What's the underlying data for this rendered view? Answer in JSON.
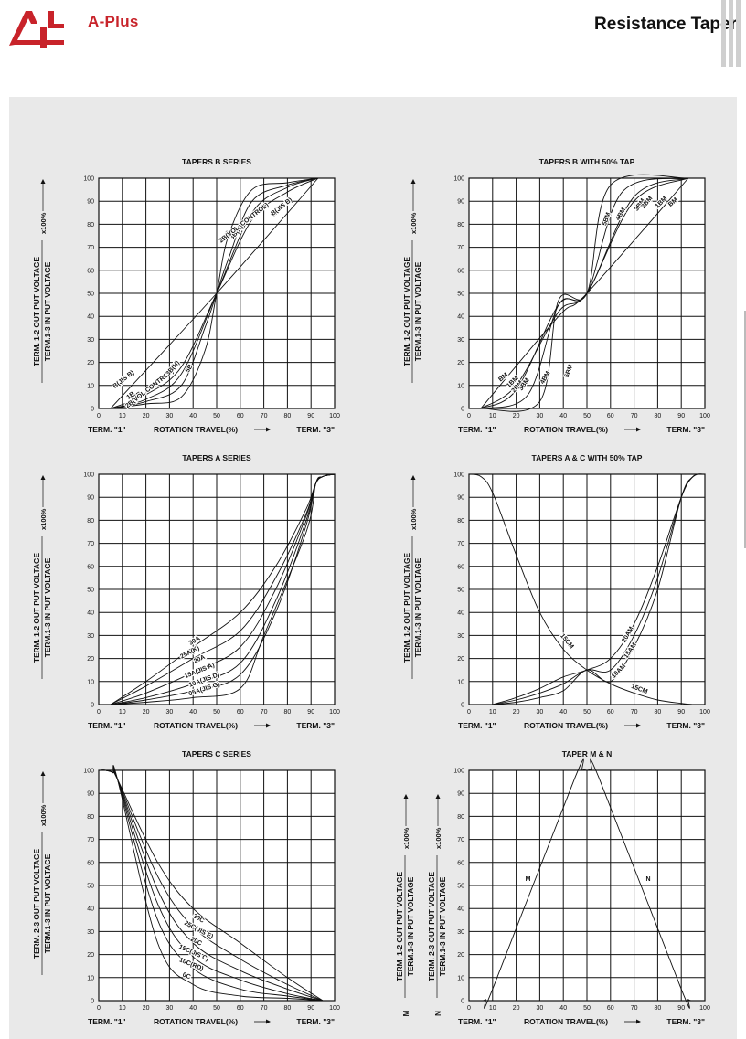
{
  "header": {
    "brand": "A-Plus",
    "title": "Resistance Taper",
    "accent_color": "#c8232a"
  },
  "axis_text": {
    "term1": "TERM. \"1\"",
    "term3": "TERM. \"3\"",
    "rotation": "ROTATION TRAVEL(%)",
    "x100": "x100%",
    "ylabel_12_num": "TERM. 1-2 OUT PUT VOLTAGE",
    "ylabel_13_den": "TERM.1-3 IN PUT VOLTAGE",
    "ylabel_23_num": "TERM. 2-3 OUT PUT VOLTAGE",
    "ylabel_m_num": "TERM. 1-2 OUT PUT VOLTAGE",
    "ylabel_n_num": "TERM. 2-3 OUT PUT VOLTAGE",
    "m_marker": "M",
    "n_marker": "N"
  },
  "chart_data": [
    {
      "type": "line",
      "title": "TAPERS B SERIES",
      "xlabel": "ROTATION TRAVEL(%)",
      "ylabel": "TERM. 1-2 OUT PUT VOLTAGE / TERM.1-3 IN PUT VOLTAGE x100%",
      "xlim": [
        0,
        100
      ],
      "ylim": [
        0,
        100
      ],
      "xticks": [
        0,
        10,
        20,
        30,
        40,
        50,
        60,
        70,
        80,
        90,
        100
      ],
      "yticks": [
        0,
        10,
        20,
        30,
        40,
        50,
        60,
        70,
        80,
        90,
        100
      ],
      "grid": true,
      "series": [
        {
          "name": "B(JIS B)",
          "x": [
            5,
            50,
            93
          ],
          "y": [
            0,
            50,
            100
          ]
        },
        {
          "name": "1B",
          "x": [
            5,
            20,
            35,
            50,
            65,
            80,
            93
          ],
          "y": [
            0,
            6,
            18,
            50,
            82,
            94,
            100
          ]
        },
        {
          "name": "2B(VOL. CONTROL)",
          "x": [
            5,
            20,
            35,
            50,
            65,
            80,
            93
          ],
          "y": [
            0,
            4,
            15,
            50,
            85,
            96,
            100
          ]
        },
        {
          "name": "3B(H)",
          "x": [
            5,
            20,
            35,
            45,
            50,
            55,
            65,
            80,
            93
          ],
          "y": [
            0,
            3,
            10,
            35,
            50,
            65,
            90,
            97,
            100
          ]
        },
        {
          "name": "5B",
          "x": [
            5,
            20,
            35,
            45,
            50,
            55,
            65,
            80,
            93
          ],
          "y": [
            0,
            2,
            5,
            25,
            50,
            75,
            95,
            98,
            100
          ]
        }
      ],
      "curve_labels": [
        {
          "text": "B(JIS B)",
          "x": 11,
          "y": 12,
          "rot": -38
        },
        {
          "text": "1B",
          "x": 14,
          "y": 5,
          "rot": -38
        },
        {
          "text": "2B",
          "x": 17,
          "y": 5,
          "rot": -38
        },
        {
          "text": "2B(VOL CONTROL)",
          "x": 22,
          "y": 8,
          "rot": -38
        },
        {
          "text": "3B(H)",
          "x": 32,
          "y": 17,
          "rot": -50
        },
        {
          "text": "5B",
          "x": 39,
          "y": 17,
          "rot": -60
        },
        {
          "text": "5B",
          "x": 55,
          "y": 75,
          "rot": -60
        },
        {
          "text": "3B(H)",
          "x": 59,
          "y": 76,
          "rot": -50
        },
        {
          "text": "2B(VOL. CONTROL)",
          "x": 62,
          "y": 80,
          "rot": -38
        },
        {
          "text": "1B",
          "x": 75,
          "y": 84,
          "rot": -38
        },
        {
          "text": "B(JIS B)",
          "x": 78,
          "y": 87,
          "rot": -38
        }
      ]
    },
    {
      "type": "line",
      "title": "TAPERS B WITH 50% TAP",
      "xlabel": "ROTATION TRAVEL(%)",
      "ylabel": "TERM. 1-2 OUT PUT VOLTAGE / TERM.1-3 IN PUT VOLTAGE x100%",
      "xlim": [
        0,
        100
      ],
      "ylim": [
        0,
        100
      ],
      "xticks": [
        0,
        10,
        20,
        30,
        40,
        50,
        60,
        70,
        80,
        90,
        100
      ],
      "yticks": [
        0,
        10,
        20,
        30,
        40,
        50,
        60,
        70,
        80,
        90,
        100
      ],
      "grid": true,
      "series": [
        {
          "name": "BM",
          "x": [
            5,
            38,
            50,
            93
          ],
          "y": [
            0,
            40,
            50,
            100
          ]
        },
        {
          "name": "1BM",
          "x": [
            5,
            20,
            38,
            50,
            70,
            93
          ],
          "y": [
            0,
            10,
            42,
            50,
            90,
            100
          ]
        },
        {
          "name": "2BM",
          "x": [
            5,
            20,
            38,
            50,
            70,
            93
          ],
          "y": [
            0,
            8,
            45,
            50,
            92,
            100
          ]
        },
        {
          "name": "4BM",
          "x": [
            5,
            25,
            38,
            50,
            65,
            93
          ],
          "y": [
            0,
            6,
            45,
            50,
            94,
            100
          ]
        },
        {
          "name": "5BM",
          "x": [
            5,
            30,
            38,
            50,
            60,
            93
          ],
          "y": [
            0,
            3,
            47,
            50,
            97,
            100
          ]
        }
      ],
      "curve_labels": [
        {
          "text": "BM",
          "x": 15,
          "y": 13,
          "rot": -40
        },
        {
          "text": "1BM",
          "x": 19,
          "y": 11,
          "rot": -45
        },
        {
          "text": "2BM",
          "x": 21,
          "y": 9,
          "rot": -50
        },
        {
          "text": "3BM",
          "x": 24,
          "y": 10,
          "rot": -55
        },
        {
          "text": "4BM",
          "x": 33,
          "y": 13,
          "rot": -60
        },
        {
          "text": "5BM",
          "x": 43,
          "y": 16,
          "rot": -70
        },
        {
          "text": "5BM",
          "x": 59,
          "y": 82,
          "rot": -70
        },
        {
          "text": "4BM",
          "x": 65,
          "y": 84,
          "rot": -60
        },
        {
          "text": "3BM",
          "x": 73,
          "y": 88,
          "rot": -55
        },
        {
          "text": "2BM",
          "x": 76,
          "y": 89,
          "rot": -50
        },
        {
          "text": "1BM",
          "x": 82,
          "y": 89,
          "rot": -45
        },
        {
          "text": "BM",
          "x": 87,
          "y": 89,
          "rot": -40
        }
      ]
    },
    {
      "type": "line",
      "title": "TAPERS A SERIES",
      "xlabel": "ROTATION TRAVEL(%)",
      "ylabel": "TERM. 1-2 OUT PUT VOLTAGE / TERM.1-3 IN PUT VOLTAGE x100%",
      "xlim": [
        0,
        100
      ],
      "ylim": [
        0,
        100
      ],
      "xticks": [
        0,
        10,
        20,
        30,
        40,
        50,
        60,
        70,
        80,
        90,
        100
      ],
      "yticks": [
        0,
        10,
        20,
        30,
        40,
        50,
        60,
        70,
        80,
        90,
        100
      ],
      "grid": true,
      "series": [
        {
          "name": "30A",
          "x": [
            5,
            20,
            40,
            60,
            75,
            88,
            92,
            95,
            100
          ],
          "y": [
            0,
            10,
            25,
            40,
            60,
            85,
            96,
            99,
            100
          ]
        },
        {
          "name": "25A(K)",
          "x": [
            5,
            20,
            40,
            60,
            75,
            88,
            92,
            95,
            100
          ],
          "y": [
            0,
            8,
            20,
            32,
            55,
            83,
            96,
            99,
            100
          ]
        },
        {
          "name": "20A",
          "x": [
            5,
            20,
            40,
            60,
            75,
            88,
            92,
            95,
            100
          ],
          "y": [
            0,
            5,
            14,
            25,
            50,
            82,
            96,
            99,
            100
          ]
        },
        {
          "name": "15A(JIS A)",
          "x": [
            5,
            20,
            40,
            60,
            75,
            88,
            92,
            95,
            100
          ],
          "y": [
            0,
            3,
            9,
            18,
            45,
            80,
            96,
            99,
            100
          ]
        },
        {
          "name": "10A(JIS D)",
          "x": [
            5,
            20,
            40,
            60,
            75,
            88,
            92,
            95,
            100
          ],
          "y": [
            0,
            2,
            6,
            13,
            40,
            78,
            96,
            99,
            100
          ]
        },
        {
          "name": "05A(JIS G)",
          "x": [
            5,
            20,
            40,
            60,
            70,
            88,
            92,
            95,
            100
          ],
          "y": [
            0,
            1,
            3,
            7,
            30,
            75,
            96,
            99,
            100
          ]
        }
      ],
      "curve_labels": [
        {
          "text": "30A",
          "x": 41,
          "y": 27,
          "rot": -30
        },
        {
          "text": "25A(K)",
          "x": 39,
          "y": 22,
          "rot": -28
        },
        {
          "text": "20A",
          "x": 43,
          "y": 19,
          "rot": -25
        },
        {
          "text": "15A(JIS A)",
          "x": 43,
          "y": 14,
          "rot": -22
        },
        {
          "text": "10A(JIS D)",
          "x": 45,
          "y": 10,
          "rot": -20
        },
        {
          "text": "05A(JIS G)",
          "x": 45,
          "y": 6,
          "rot": -18
        }
      ]
    },
    {
      "type": "line",
      "title": "TAPERS A & C WITH 50% TAP",
      "xlabel": "ROTATION TRAVEL(%)",
      "ylabel": "TERM. 1-2 OUT PUT VOLTAGE / TERM.1-3 IN PUT VOLTAGE x100%",
      "xlim": [
        0,
        100
      ],
      "ylim": [
        0,
        100
      ],
      "xticks": [
        0,
        10,
        20,
        30,
        40,
        50,
        60,
        70,
        80,
        90,
        100
      ],
      "yticks": [
        0,
        10,
        20,
        30,
        40,
        50,
        60,
        70,
        80,
        90,
        100
      ],
      "grid": true,
      "series": [
        {
          "name": "15CM",
          "x": [
            0,
            5,
            10,
            20,
            30,
            40,
            50,
            60,
            70,
            80,
            90,
            95
          ],
          "y": [
            100,
            99,
            92,
            65,
            40,
            24,
            15,
            9,
            5,
            2,
            0.5,
            0
          ]
        },
        {
          "name": "20AM",
          "x": [
            10,
            20,
            30,
            40,
            50,
            60,
            70,
            80,
            90,
            95,
            100
          ],
          "y": [
            0,
            3,
            7,
            12,
            15,
            20,
            35,
            60,
            90,
            99,
            100
          ]
        },
        {
          "name": "15AM",
          "x": [
            10,
            20,
            30,
            40,
            50,
            60,
            70,
            80,
            90,
            95,
            100
          ],
          "y": [
            0,
            2,
            5,
            9,
            15,
            15,
            30,
            55,
            90,
            99,
            100
          ]
        },
        {
          "name": "10AM",
          "x": [
            10,
            20,
            30,
            40,
            50,
            60,
            70,
            80,
            90,
            95,
            100
          ],
          "y": [
            0,
            1,
            3,
            6,
            15,
            10,
            25,
            50,
            90,
            99,
            100
          ]
        }
      ],
      "curve_labels": [
        {
          "text": "15CM",
          "x": 41,
          "y": 27,
          "rot": 50
        },
        {
          "text": "20AM",
          "x": 68,
          "y": 30,
          "rot": -60
        },
        {
          "text": "15AM",
          "x": 69,
          "y": 23,
          "rot": -55
        },
        {
          "text": "10AM",
          "x": 64,
          "y": 14,
          "rot": -45
        },
        {
          "text": "15CM",
          "x": 72,
          "y": 6,
          "rot": 20
        }
      ]
    },
    {
      "type": "line",
      "title": "TAPERS C SERIES",
      "xlabel": "ROTATION TRAVEL(%)",
      "ylabel": "TERM. 2-3 OUT PUT VOLTAGE / TERM.1-3 IN PUT VOLTAGE x100%",
      "xlim": [
        0,
        100
      ],
      "ylim": [
        0,
        100
      ],
      "xticks": [
        0,
        10,
        20,
        30,
        40,
        50,
        60,
        70,
        80,
        90,
        100
      ],
      "yticks": [
        0,
        10,
        20,
        30,
        40,
        50,
        60,
        70,
        80,
        90,
        100
      ],
      "grid": true,
      "series": [
        {
          "name": "30C",
          "x": [
            0,
            3,
            6,
            8,
            25,
            40,
            60,
            80,
            95
          ],
          "y": [
            100,
            100,
            99,
            96,
            60,
            40,
            25,
            10,
            0
          ]
        },
        {
          "name": "25C(JIS E)",
          "x": [
            0,
            3,
            6,
            8,
            25,
            40,
            60,
            80,
            95
          ],
          "y": [
            100,
            100,
            99,
            96,
            54,
            32,
            18,
            7,
            0
          ]
        },
        {
          "name": "20C",
          "x": [
            0,
            3,
            6,
            8,
            25,
            40,
            60,
            80,
            95
          ],
          "y": [
            100,
            100,
            99,
            96,
            48,
            25,
            13,
            5,
            0
          ]
        },
        {
          "name": "15C(JIS C)",
          "x": [
            0,
            3,
            6,
            8,
            25,
            40,
            60,
            80,
            95
          ],
          "y": [
            100,
            100,
            99,
            96,
            42,
            19,
            9,
            3,
            0
          ]
        },
        {
          "name": "10C(RD)",
          "x": [
            0,
            3,
            6,
            8,
            25,
            40,
            60,
            80,
            95
          ],
          "y": [
            100,
            100,
            99,
            96,
            35,
            14,
            5,
            2,
            0
          ]
        },
        {
          "name": "0C",
          "x": [
            0,
            3,
            6,
            8,
            25,
            40,
            60,
            80,
            95
          ],
          "y": [
            100,
            100,
            99,
            96,
            25,
            7,
            2,
            1,
            0
          ]
        }
      ],
      "curve_labels": [
        {
          "text": "30C",
          "x": 42,
          "y": 35,
          "rot": 30
        },
        {
          "text": "25C(JIS E)",
          "x": 42,
          "y": 30,
          "rot": 28
        },
        {
          "text": "20C",
          "x": 41,
          "y": 25,
          "rot": 26
        },
        {
          "text": "15C(JIS C)",
          "x": 40,
          "y": 20,
          "rot": 24
        },
        {
          "text": "10C(RD)",
          "x": 39,
          "y": 15,
          "rot": 22
        },
        {
          "text": "0C",
          "x": 37,
          "y": 10,
          "rot": 20
        }
      ]
    },
    {
      "type": "line",
      "title": "TAPER M & N",
      "xlabel": "ROTATION TRAVEL(%)",
      "ylabel": "M: TERM. 1-2 OUT PUT VOLTAGE / TERM.1-3 IN PUT VOLTAGE x100% ; N: TERM. 2-3 OUT PUT VOLTAGE / TERM.1-3 IN PUT VOLTAGE x100%",
      "xlim": [
        0,
        100
      ],
      "ylim": [
        0,
        100
      ],
      "xticks": [
        0,
        10,
        20,
        30,
        40,
        50,
        60,
        70,
        80,
        90,
        100
      ],
      "yticks": [
        0,
        10,
        20,
        30,
        40,
        50,
        60,
        70,
        80,
        90,
        100
      ],
      "grid": true,
      "series": [
        {
          "name": "M",
          "x": [
            5,
            7,
            10,
            45,
            48,
            50
          ],
          "y": [
            0,
            0.5,
            5,
            97,
            100,
            100
          ]
        },
        {
          "name": "N",
          "x": [
            50,
            52,
            55,
            90,
            93,
            95
          ],
          "y": [
            100,
            100,
            97,
            5,
            0.5,
            0
          ]
        }
      ],
      "curve_labels": [
        {
          "text": "M",
          "x": 25,
          "y": 52,
          "rot": 0
        },
        {
          "text": "N",
          "x": 76,
          "y": 52,
          "rot": 0
        }
      ]
    }
  ]
}
